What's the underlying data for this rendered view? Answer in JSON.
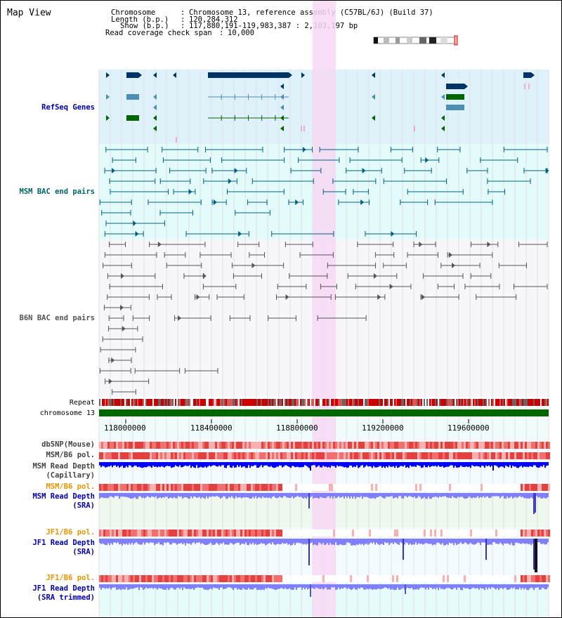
{
  "title": "Map View",
  "header": {
    "chromosome_label": "Chromosome",
    "chromosome_value": "Chromosome 13, reference assembly (C57BL/6J) (Build 37)",
    "length_label": "Length (b.p.)",
    "length_value": "120,284,312",
    "show_label": "Show (b.p.)",
    "show_value": "117,880,191-119,983,387 : 2,103,197 bp",
    "coverage_label": "Read coverage check span",
    "coverage_value": "10,000"
  },
  "tracks": {
    "refseq": "RefSeq Genes",
    "msm_bac": "MSM BAC end pairs",
    "b6n_bac": "B6N BAC end pairs",
    "repeat": "Repeat",
    "chromosome": "chromosome 13",
    "dbsnp": "dbSNP(Mouse)",
    "msm_b6_pol_1": "MSM/B6 pol.",
    "msm_read_depth_cap_1": "MSM Read Depth",
    "msm_read_depth_cap_2": "(Capillary)",
    "msm_b6_pol_2": "MSM/B6 pol.",
    "msm_read_depth_sra_1": "MSM Read Depth",
    "msm_read_depth_sra_2": "(SRA)",
    "jf1_b6_pol_1": "JF1/B6 pol.",
    "jf1_read_depth_sra_1": "JF1 Read Depth",
    "jf1_read_depth_sra_2": "(SRA)",
    "jf1_b6_pol_2": "JF1/B6 pol.",
    "jf1_read_depth_trim_1": "JF1 Read Depth",
    "jf1_read_depth_trim_2": "(SRA trimmed)"
  },
  "axis": {
    "ticks": [
      "118000000",
      "118400000",
      "118800000",
      "119200000",
      "119600000"
    ]
  },
  "colors": {
    "refseq_bg": "#dff2fb",
    "msm_bg": "#e4fbfb",
    "highlight": "#f7d8f4",
    "gene_dark": "#003366",
    "gene_green": "#006600",
    "gene_mid": "#4d8fb0",
    "bac_msm": "#006080",
    "bac_b6n": "#555555",
    "label_blue": "#0000aa",
    "label_teal": "#006666",
    "label_orange": "#e69500",
    "chromosome_green": "#006600",
    "depth_blue": "#0000ff",
    "depth_light": "#8080ff"
  }
}
